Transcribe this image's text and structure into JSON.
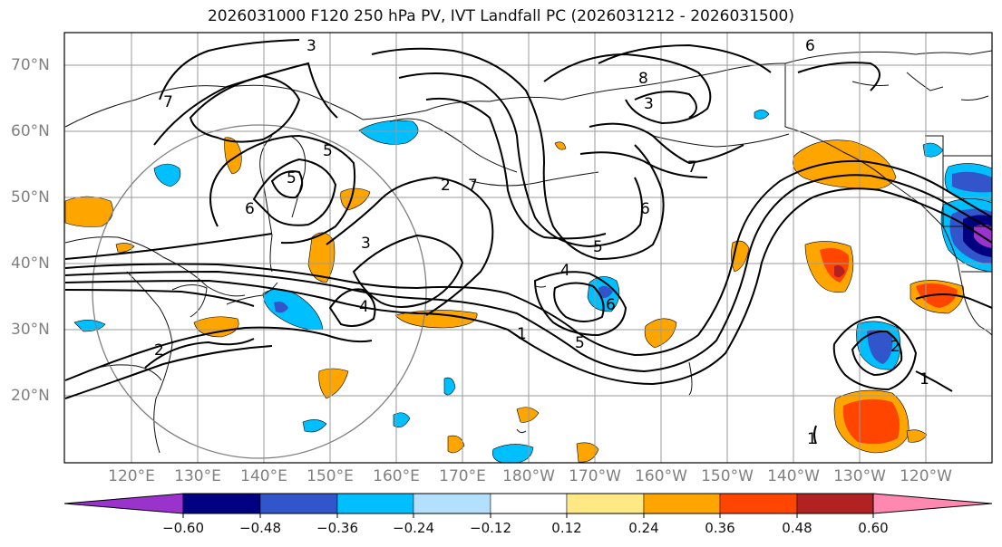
{
  "title": "2026031000 F120 250 hPa PV, IVT Landfall PC (2026031212 - 2026031500)",
  "map": {
    "lat_ticks": [
      "70°N",
      "60°N",
      "50°N",
      "40°N",
      "30°N",
      "20°N"
    ],
    "lon_ticks": [
      "120°E",
      "130°E",
      "140°E",
      "150°E",
      "160°E",
      "170°E",
      "180°W",
      "170°W",
      "160°W",
      "150°W",
      "140°W",
      "130°W",
      "120°W"
    ],
    "pv_contour_labels": [
      "1",
      "2",
      "3",
      "4",
      "5",
      "6",
      "7",
      "8"
    ],
    "colors": {
      "coast": "#111111",
      "contour": "#000000",
      "grid": "#9a9a9a",
      "circle": "#808080"
    }
  },
  "colorbar": {
    "colors": [
      "#9933cc",
      "#000080",
      "#3355cc",
      "#00bfff",
      "#b3e0ff",
      "#ffffff",
      "#ffe985",
      "#ffa500",
      "#ff4500",
      "#b22222",
      "#ff88b0"
    ],
    "tick_labels": [
      "−0.60",
      "−0.48",
      "−0.36",
      "−0.24",
      "−0.12",
      "0.12",
      "0.24",
      "0.36",
      "0.48",
      "0.60"
    ]
  }
}
